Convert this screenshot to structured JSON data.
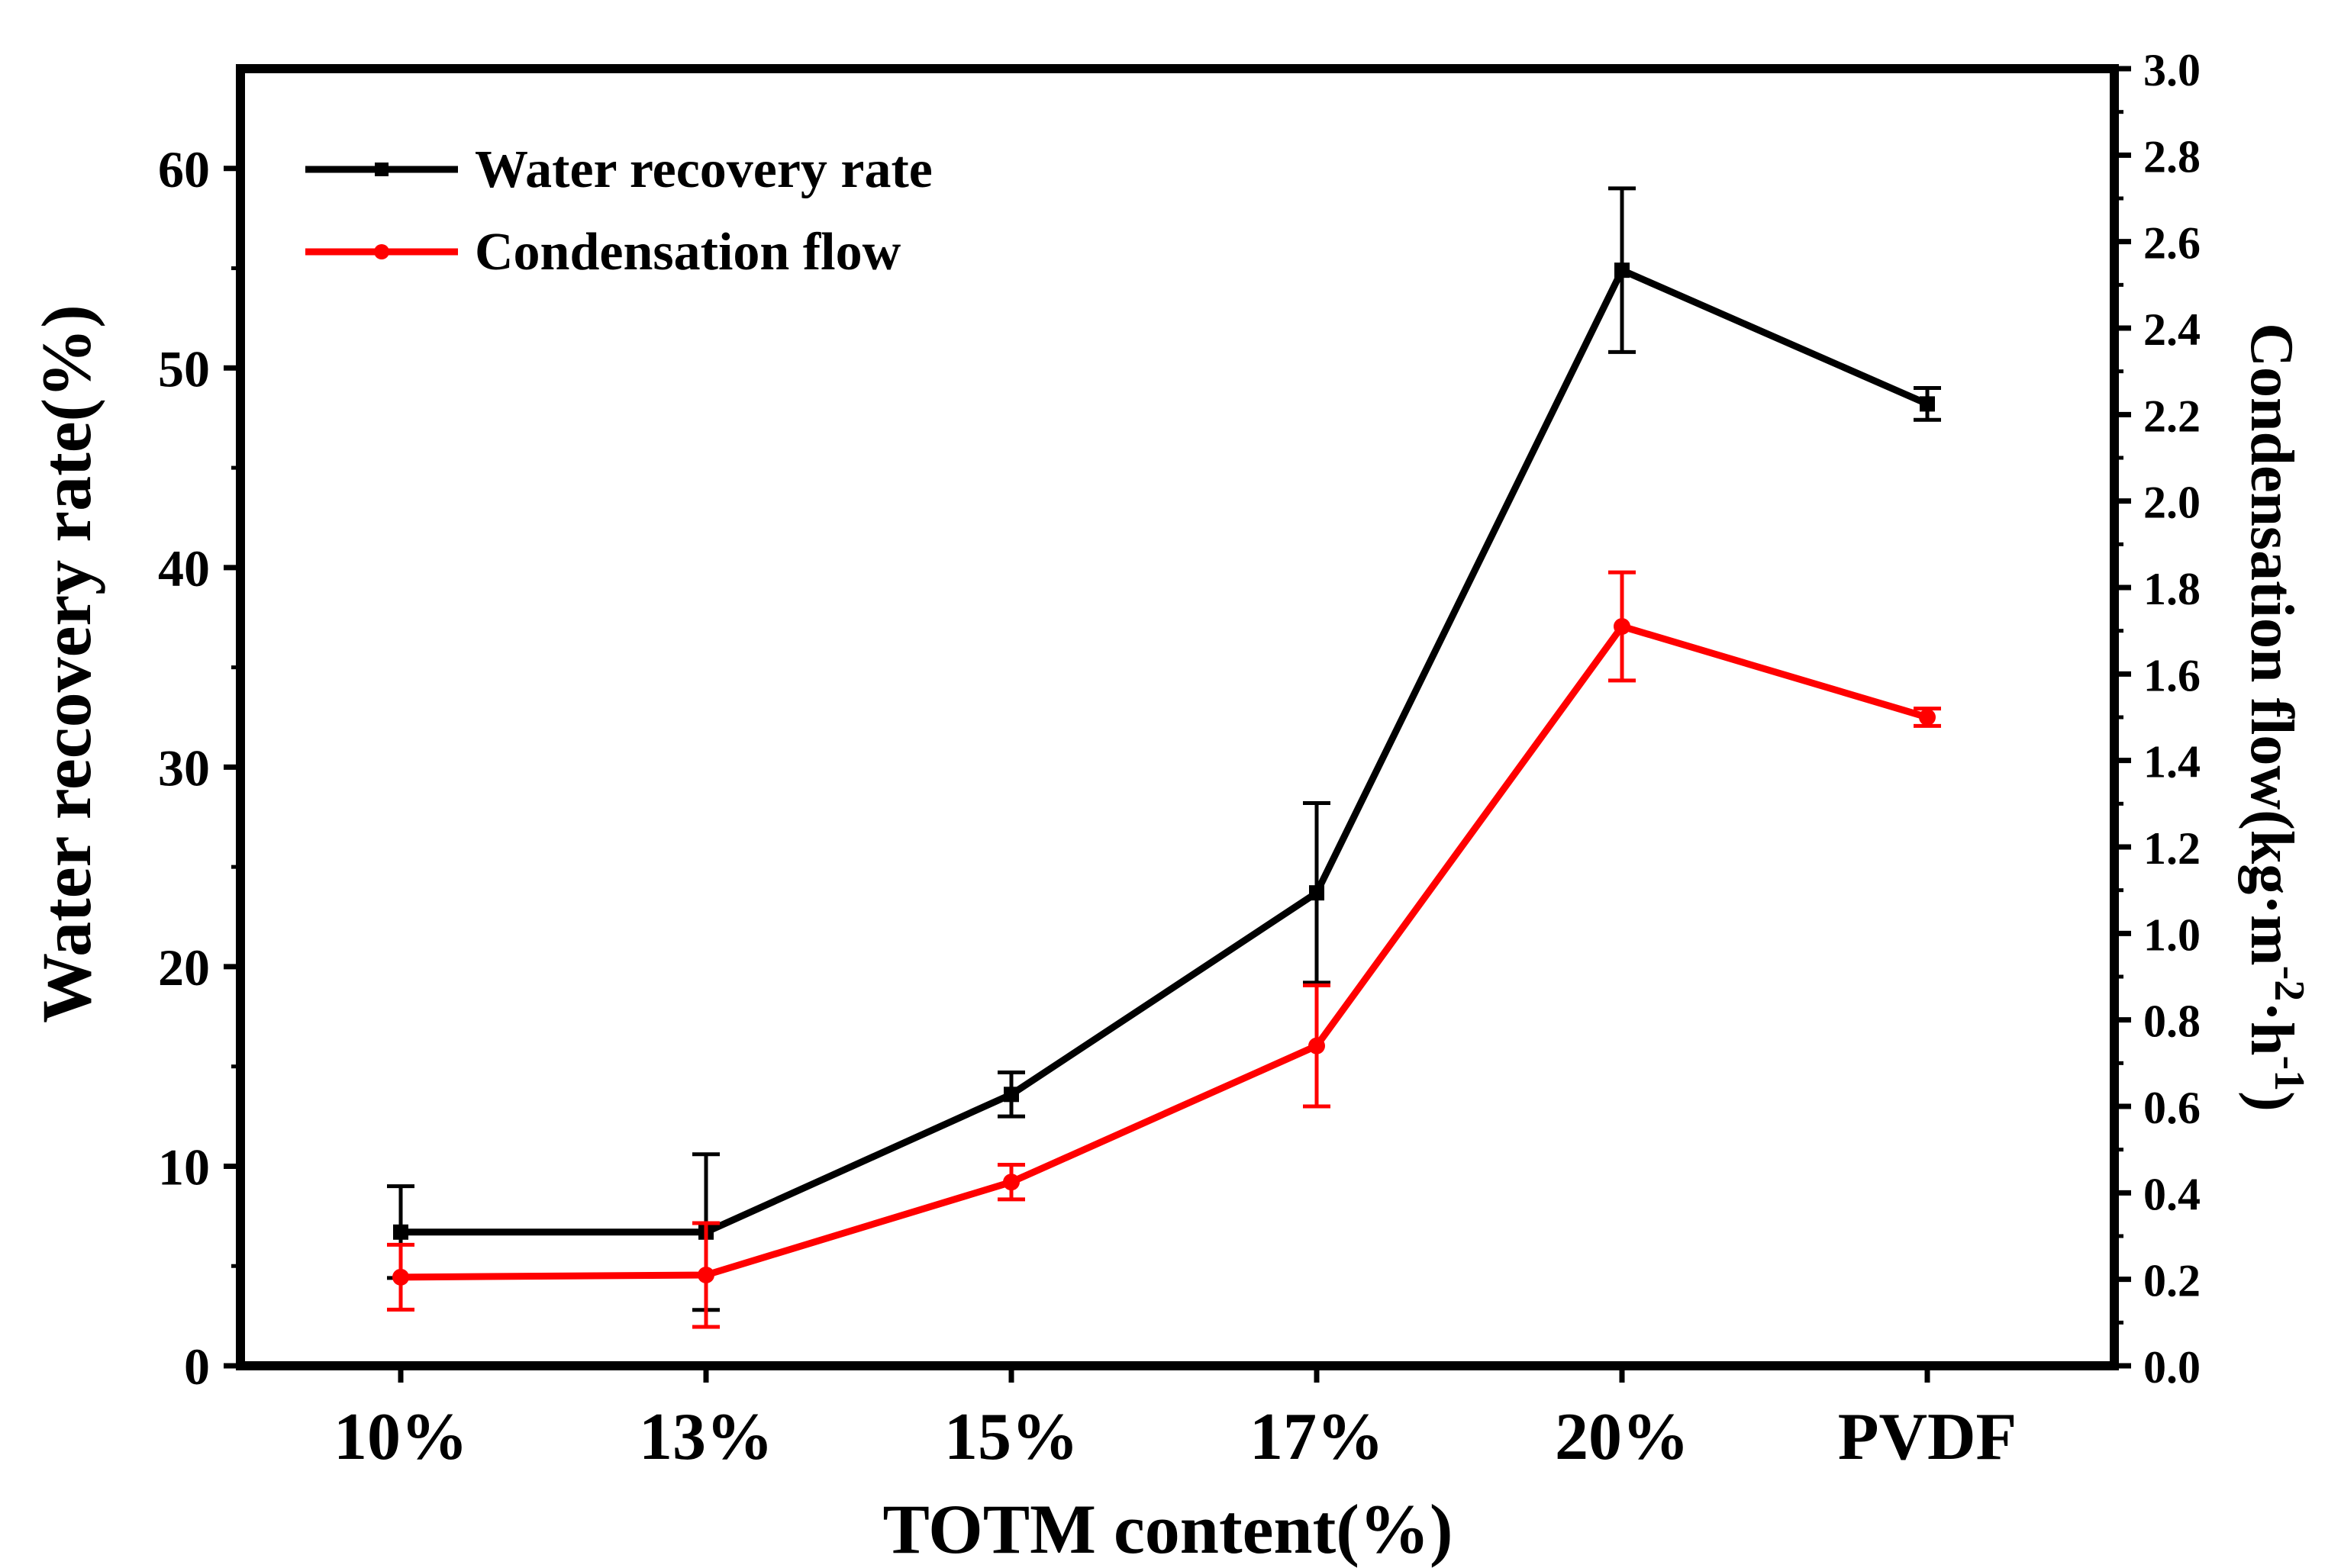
{
  "chart_data": {
    "type": "line",
    "title": "",
    "xlabel": "TOTM content(%)",
    "categories": [
      "10%",
      "13%",
      "15%",
      "17%",
      "20%",
      "PVDF"
    ],
    "y_left": {
      "label": "Water recovery rate(%)",
      "ylim": [
        0,
        65
      ],
      "ticks": [
        0,
        10,
        20,
        30,
        40,
        50,
        60
      ],
      "tick_labels": [
        "0",
        "10",
        "20",
        "30",
        "40",
        "50",
        "60"
      ]
    },
    "y_right": {
      "label_main": "Condensation flow(kg·m",
      "label_sup1": "-2",
      "label_mid": "·h",
      "label_sup2": "-1",
      "label_end": ")",
      "ylim": [
        0,
        3.0
      ],
      "ticks": [
        0,
        0.2,
        0.4,
        0.6,
        0.8,
        1.0,
        1.2,
        1.4,
        1.6,
        1.8,
        2.0,
        2.2,
        2.4,
        2.6,
        2.8,
        3.0
      ],
      "tick_labels": [
        "0.0",
        "0.2",
        "0.4",
        "0.6",
        "0.8",
        "1.0",
        "1.2",
        "1.4",
        "1.6",
        "1.8",
        "2.0",
        "2.2",
        "2.4",
        "2.6",
        "2.8",
        "3.0"
      ]
    },
    "series": [
      {
        "name": "Water recovery rate",
        "axis": "left",
        "color": "#000000",
        "marker": "square",
        "values": [
          6.7,
          6.7,
          13.6,
          23.7,
          54.9,
          48.2
        ],
        "errors": [
          2.3,
          3.9,
          1.1,
          4.5,
          4.1,
          0.8
        ]
      },
      {
        "name": "Condensation flow",
        "axis": "right",
        "color": "#ff0000",
        "marker": "circle",
        "values": [
          0.205,
          0.21,
          0.425,
          0.74,
          1.71,
          1.5
        ],
        "errors": [
          0.075,
          0.12,
          0.04,
          0.14,
          0.125,
          0.02
        ]
      }
    ],
    "legend": "top-left"
  }
}
